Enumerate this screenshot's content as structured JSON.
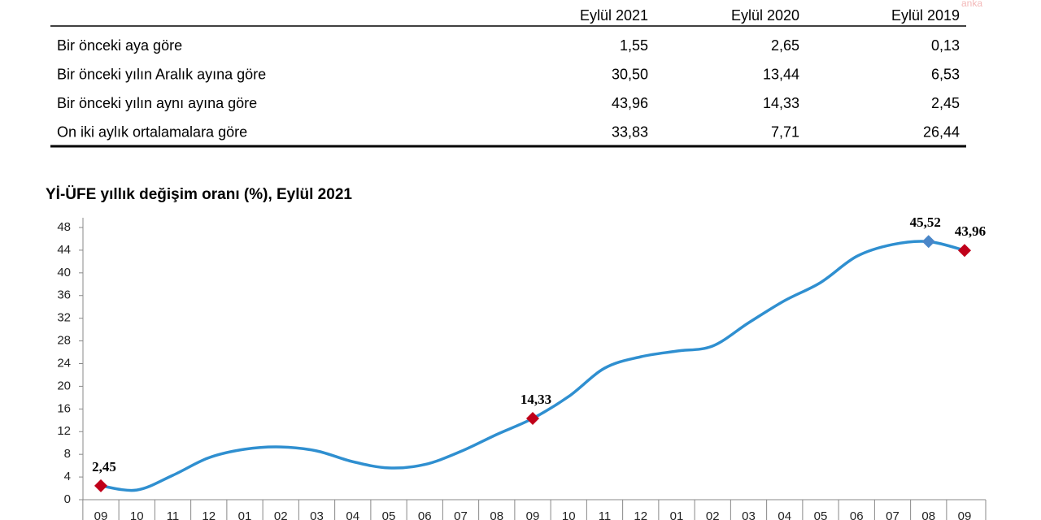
{
  "watermark": "anka",
  "table": {
    "header": [
      "Eylül 2021",
      "Eylül 2020",
      "Eylül 2019"
    ],
    "rows": [
      [
        "Bir önceki aya göre",
        "1,55",
        "2,65",
        "0,13"
      ],
      [
        "Bir önceki yılın Aralık ayına göre",
        "30,50",
        "13,44",
        "6,53"
      ],
      [
        "Bir önceki yılın aynı ayına göre",
        "43,96",
        "14,33",
        "2,45"
      ],
      [
        "On iki aylık ortalamalara göre",
        "33,83",
        "7,71",
        "26,44"
      ]
    ]
  },
  "chart_data": {
    "type": "line",
    "title": "Yİ-ÜFE yıllık değişim oranı (%), Eylül 2021",
    "categories": [
      "09",
      "10",
      "11",
      "12",
      "01",
      "02",
      "03",
      "04",
      "05",
      "06",
      "07",
      "08",
      "09",
      "10",
      "11",
      "12",
      "01",
      "02",
      "03",
      "04",
      "05",
      "06",
      "07",
      "08",
      "09"
    ],
    "values": [
      2.45,
      1.7,
      4.3,
      7.4,
      8.9,
      9.3,
      8.6,
      6.7,
      5.6,
      6.2,
      8.5,
      11.5,
      14.33,
      18.2,
      23.2,
      25.2,
      26.2,
      27.1,
      31.2,
      35.1,
      38.3,
      42.9,
      45.0,
      45.52,
      43.96
    ],
    "value_labels": [
      "2,45",
      null,
      null,
      null,
      null,
      null,
      null,
      null,
      null,
      null,
      null,
      null,
      "14,33",
      null,
      null,
      null,
      null,
      null,
      null,
      null,
      null,
      null,
      null,
      "45,52",
      "43,96"
    ],
    "marker_colors": [
      "#c0001a",
      null,
      null,
      null,
      null,
      null,
      null,
      null,
      null,
      null,
      null,
      null,
      "#c0001a",
      null,
      null,
      null,
      null,
      null,
      null,
      null,
      null,
      null,
      null,
      "#4a86c8",
      "#c0001a"
    ],
    "color": "#2f8fd0",
    "ylim": [
      0,
      48
    ],
    "yticks": [
      0,
      4,
      8,
      12,
      16,
      20,
      24,
      28,
      32,
      36,
      40,
      44,
      48
    ]
  }
}
